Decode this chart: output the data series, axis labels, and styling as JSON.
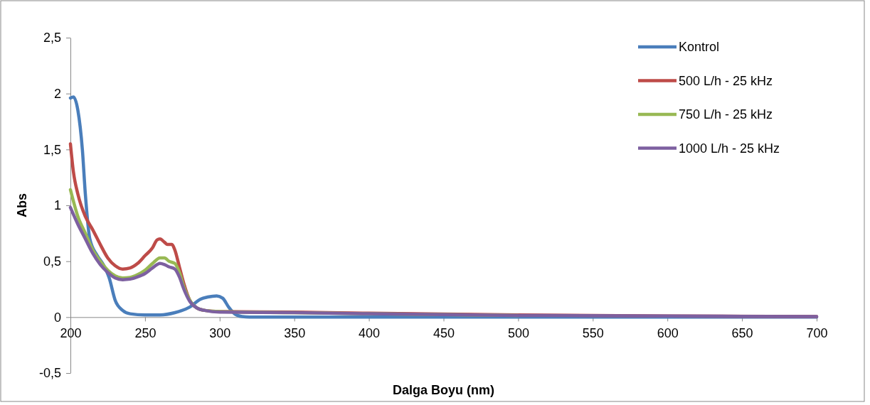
{
  "chart_data": {
    "type": "line",
    "xlabel": "Dalga Boyu (nm)",
    "ylabel": "Abs",
    "xlim": [
      200,
      700
    ],
    "ylim": [
      -0.5,
      2.5
    ],
    "xticks": [
      200,
      250,
      300,
      350,
      400,
      450,
      500,
      550,
      600,
      650,
      700
    ],
    "yticks": [
      {
        "value": -0.5,
        "label": "-0,5"
      },
      0,
      {
        "value": 0.5,
        "label": "0,5"
      },
      1,
      {
        "value": 1.5,
        "label": "1,5"
      },
      2,
      {
        "value": 2.5,
        "label": "2,5"
      }
    ],
    "grid": false,
    "legend": "top right",
    "marker": "none",
    "line_style": "solid",
    "series": [
      {
        "name": "Kontrol",
        "color": "#4a7ebb",
        "x": [
          200,
          202,
          205,
          208,
          210,
          213,
          218,
          222,
          226,
          230,
          235,
          240,
          250,
          260,
          270,
          280,
          287,
          292,
          298,
          302,
          306,
          310,
          315,
          320,
          400,
          700
        ],
        "values": [
          1.96,
          1.97,
          1.85,
          1.5,
          1.1,
          0.7,
          0.55,
          0.47,
          0.35,
          0.15,
          0.06,
          0.03,
          0.02,
          0.02,
          0.04,
          0.09,
          0.16,
          0.18,
          0.19,
          0.17,
          0.09,
          0.03,
          0.005,
          0,
          0,
          0
        ]
      },
      {
        "name": "500 L/h - 25 kHz",
        "color": "#be4b48",
        "x": [
          200,
          202,
          205,
          210,
          215,
          220,
          225,
          230,
          235,
          240,
          245,
          250,
          255,
          258,
          260,
          263,
          265,
          268,
          270,
          273,
          276,
          280,
          285,
          290,
          300,
          350,
          400,
          500,
          600,
          700
        ],
        "values": [
          1.55,
          1.3,
          1.1,
          0.9,
          0.78,
          0.65,
          0.53,
          0.46,
          0.43,
          0.44,
          0.48,
          0.55,
          0.62,
          0.69,
          0.7,
          0.67,
          0.65,
          0.65,
          0.6,
          0.45,
          0.3,
          0.15,
          0.08,
          0.06,
          0.05,
          0.045,
          0.035,
          0.02,
          0.01,
          0.005
        ]
      },
      {
        "name": "750 L/h - 25 kHz",
        "color": "#98b954",
        "x": [
          200,
          205,
          210,
          215,
          220,
          225,
          230,
          235,
          240,
          245,
          250,
          255,
          260,
          263,
          266,
          270,
          273,
          276,
          280,
          285,
          290,
          300,
          350,
          400,
          500
        ],
        "values": [
          1.14,
          0.9,
          0.75,
          0.6,
          0.5,
          0.42,
          0.37,
          0.35,
          0.355,
          0.38,
          0.42,
          0.48,
          0.53,
          0.53,
          0.5,
          0.48,
          0.4,
          0.27,
          0.15,
          0.08,
          0.06,
          0.05,
          0.04,
          0.03,
          0.015
        ]
      },
      {
        "name": "1000 L/h - 25 kHz",
        "color": "#7d60a0",
        "x": [
          200,
          205,
          210,
          215,
          220,
          225,
          230,
          235,
          240,
          245,
          250,
          255,
          260,
          263,
          266,
          270,
          273,
          276,
          280,
          285,
          290,
          300,
          350,
          400,
          500,
          600,
          700
        ],
        "values": [
          0.98,
          0.83,
          0.7,
          0.57,
          0.47,
          0.4,
          0.35,
          0.335,
          0.34,
          0.36,
          0.39,
          0.44,
          0.48,
          0.47,
          0.45,
          0.43,
          0.36,
          0.25,
          0.14,
          0.08,
          0.06,
          0.045,
          0.04,
          0.03,
          0.015,
          0.01,
          0.005
        ]
      }
    ]
  }
}
